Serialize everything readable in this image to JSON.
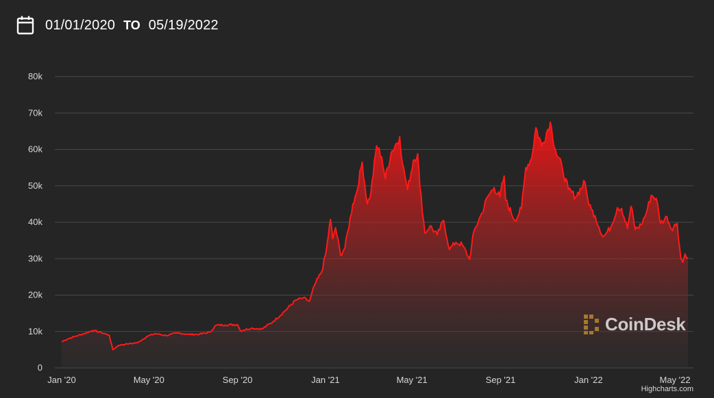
{
  "header": {
    "icon": "calendar-icon",
    "start_date": "01/01/2020",
    "to_label": "TO",
    "end_date": "05/19/2022"
  },
  "watermark": {
    "icon": "coindesk-logo-icon",
    "text": "CoinDesk"
  },
  "credits": "Highcharts.com",
  "colors": {
    "background": "#252525",
    "series_line": "#ff1a1a",
    "gridline": "#4a4a4a",
    "axis_text": "#d8d8d8"
  },
  "chart_data": {
    "type": "area",
    "title": "",
    "xlabel": "",
    "ylabel": "",
    "grid": true,
    "legend": "none",
    "ylim": [
      0,
      80000
    ],
    "yticks": [
      0,
      10000,
      20000,
      30000,
      40000,
      50000,
      60000,
      70000,
      80000
    ],
    "ytick_labels": [
      "0",
      "10k",
      "20k",
      "30k",
      "40k",
      "50k",
      "60k",
      "70k",
      "80k"
    ],
    "xlim": [
      "2020-01-01",
      "2022-05-19"
    ],
    "xticks": [
      "2020-01-01",
      "2020-05-01",
      "2020-09-01",
      "2021-01-01",
      "2021-05-01",
      "2021-09-01",
      "2022-01-01",
      "2022-05-01"
    ],
    "xtick_labels": [
      "Jan '20",
      "May '20",
      "Sep '20",
      "Jan '21",
      "May '21",
      "Sep '21",
      "Jan '22",
      "May '22"
    ],
    "series": [
      {
        "points": [
          [
            "2020-01-01",
            7200
          ],
          [
            "2020-01-10",
            8000
          ],
          [
            "2020-01-20",
            8700
          ],
          [
            "2020-02-01",
            9400
          ],
          [
            "2020-02-13",
            10300
          ],
          [
            "2020-02-25",
            9700
          ],
          [
            "2020-03-07",
            9000
          ],
          [
            "2020-03-12",
            5000
          ],
          [
            "2020-03-20",
            6200
          ],
          [
            "2020-04-01",
            6600
          ],
          [
            "2020-04-15",
            6900
          ],
          [
            "2020-04-29",
            8700
          ],
          [
            "2020-05-10",
            9400
          ],
          [
            "2020-05-25",
            8900
          ],
          [
            "2020-06-10",
            9600
          ],
          [
            "2020-06-25",
            9200
          ],
          [
            "2020-07-10",
            9250
          ],
          [
            "2020-07-25",
            9800
          ],
          [
            "2020-08-02",
            11700
          ],
          [
            "2020-08-15",
            11800
          ],
          [
            "2020-09-01",
            11900
          ],
          [
            "2020-09-05",
            10200
          ],
          [
            "2020-09-20",
            10900
          ],
          [
            "2020-10-05",
            10700
          ],
          [
            "2020-10-21",
            12800
          ],
          [
            "2020-11-05",
            15500
          ],
          [
            "2020-11-20",
            18500
          ],
          [
            "2020-12-01",
            19200
          ],
          [
            "2020-12-10",
            18300
          ],
          [
            "2020-12-17",
            22800
          ],
          [
            "2020-12-27",
            26500
          ],
          [
            "2021-01-02",
            32000
          ],
          [
            "2021-01-08",
            40800
          ],
          [
            "2021-01-11",
            35500
          ],
          [
            "2021-01-15",
            38500
          ],
          [
            "2021-01-22",
            31000
          ],
          [
            "2021-01-28",
            33000
          ],
          [
            "2021-02-08",
            45000
          ],
          [
            "2021-02-13",
            48000
          ],
          [
            "2021-02-21",
            56500
          ],
          [
            "2021-02-28",
            45000
          ],
          [
            "2021-03-05",
            48000
          ],
          [
            "2021-03-13",
            61000
          ],
          [
            "2021-03-20",
            58000
          ],
          [
            "2021-03-25",
            52000
          ],
          [
            "2021-04-02",
            59000
          ],
          [
            "2021-04-14",
            63500
          ],
          [
            "2021-04-18",
            56000
          ],
          [
            "2021-04-25",
            49000
          ],
          [
            "2021-05-03",
            57000
          ],
          [
            "2021-05-09",
            58800
          ],
          [
            "2021-05-12",
            50000
          ],
          [
            "2021-05-19",
            37000
          ],
          [
            "2021-05-26",
            39000
          ],
          [
            "2021-06-05",
            36500
          ],
          [
            "2021-06-14",
            40500
          ],
          [
            "2021-06-22",
            32500
          ],
          [
            "2021-07-01",
            34500
          ],
          [
            "2021-07-10",
            33800
          ],
          [
            "2021-07-20",
            29800
          ],
          [
            "2021-07-26",
            37500
          ],
          [
            "2021-08-06",
            42500
          ],
          [
            "2021-08-14",
            47000
          ],
          [
            "2021-08-23",
            49500
          ],
          [
            "2021-08-31",
            47000
          ],
          [
            "2021-09-06",
            52700
          ],
          [
            "2021-09-08",
            46000
          ],
          [
            "2021-09-21",
            40500
          ],
          [
            "2021-09-30",
            43800
          ],
          [
            "2021-10-06",
            55000
          ],
          [
            "2021-10-14",
            57500
          ],
          [
            "2021-10-20",
            66000
          ],
          [
            "2021-10-28",
            61000
          ],
          [
            "2021-11-09",
            67500
          ],
          [
            "2021-11-16",
            60000
          ],
          [
            "2021-11-26",
            54500
          ],
          [
            "2021-12-04",
            49000
          ],
          [
            "2021-12-14",
            47000
          ],
          [
            "2021-12-27",
            51000
          ],
          [
            "2021-12-31",
            46300
          ],
          [
            "2022-01-05",
            43500
          ],
          [
            "2022-01-10",
            41800
          ],
          [
            "2022-01-21",
            36000
          ],
          [
            "2022-01-24",
            36500
          ],
          [
            "2022-02-01",
            38700
          ],
          [
            "2022-02-10",
            44000
          ],
          [
            "2022-02-16",
            43800
          ],
          [
            "2022-02-24",
            38300
          ],
          [
            "2022-03-01",
            44400
          ],
          [
            "2022-03-07",
            38000
          ],
          [
            "2022-03-15",
            39300
          ],
          [
            "2022-03-22",
            42400
          ],
          [
            "2022-03-29",
            47400
          ],
          [
            "2022-04-05",
            46600
          ],
          [
            "2022-04-11",
            39700
          ],
          [
            "2022-04-20",
            41500
          ],
          [
            "2022-04-26",
            38200
          ],
          [
            "2022-05-04",
            39700
          ],
          [
            "2022-05-09",
            30200
          ],
          [
            "2022-05-12",
            29000
          ],
          [
            "2022-05-15",
            31300
          ],
          [
            "2022-05-19",
            30300
          ]
        ]
      }
    ]
  }
}
